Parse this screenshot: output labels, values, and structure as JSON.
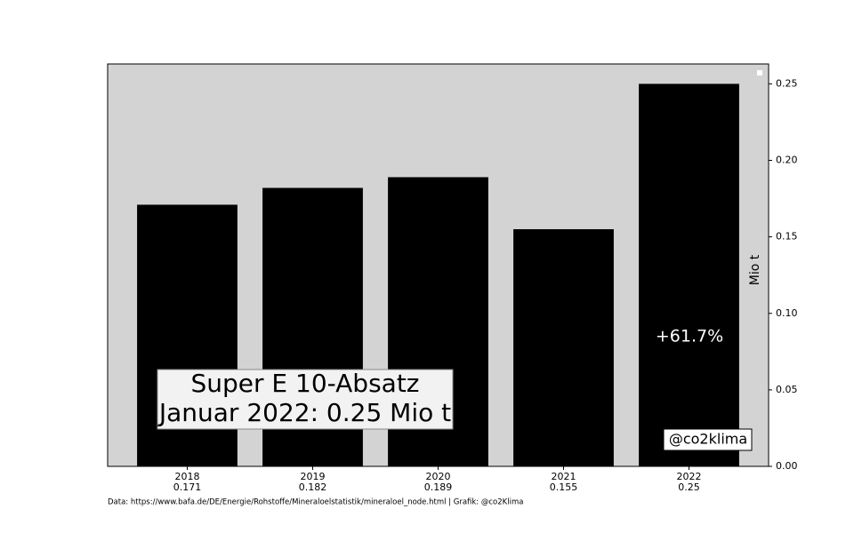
{
  "chart_data": {
    "type": "bar",
    "categories": [
      "2018",
      "2019",
      "2020",
      "2021",
      "2022"
    ],
    "values": [
      0.171,
      0.182,
      0.189,
      0.155,
      0.25
    ],
    "color": "#000000",
    "background": "#d3d3d3",
    "ylabel": "Mio t",
    "ylim": [
      0,
      0.263
    ],
    "yticks": [
      {
        "value": 0,
        "label": "0.00"
      },
      {
        "value": 0.05,
        "label": "0.05"
      },
      {
        "value": 0.1,
        "label": "0.10"
      },
      {
        "value": 0.15,
        "label": "0.15"
      },
      {
        "value": 0.2,
        "label": "0.20"
      },
      {
        "value": 0.25,
        "label": "0.25"
      }
    ],
    "annotation": [
      "Super E 10-Absatz",
      "Januar 2022: 0.25 Mio t"
    ],
    "change_label": "+61.7%",
    "handle": "@co2klima",
    "source": "Data: https://www.bafa.de/DE/Energie/Rohstoffe/Mineraloelstatistik/mineraloel_node.html | Grafik: @co2Klima"
  }
}
